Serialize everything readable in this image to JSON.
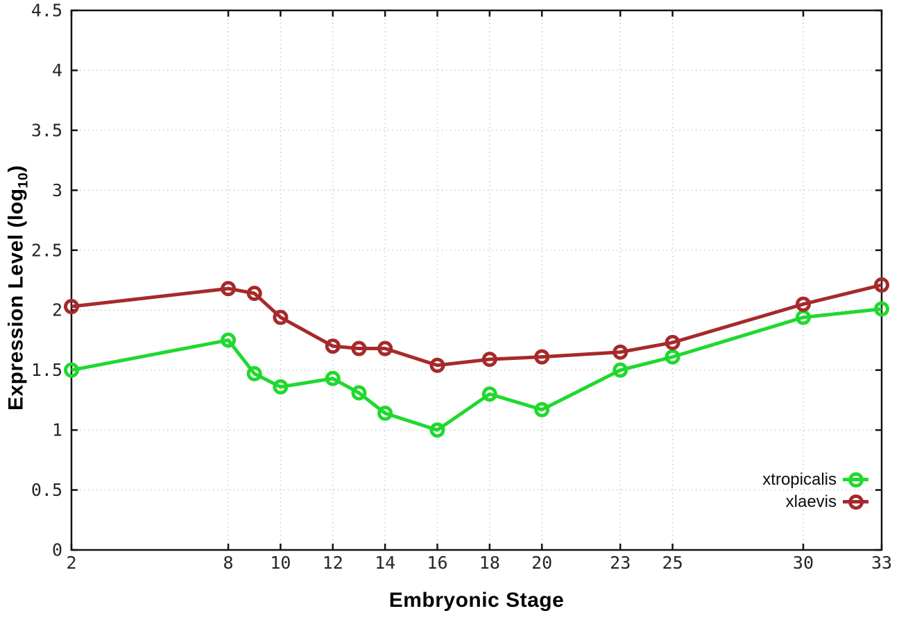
{
  "chart_data": {
    "type": "line",
    "title": "",
    "xlabel": "Embryonic Stage",
    "ylabel": "Expression Level (log10)",
    "ylabel_parts": {
      "main": "Expression Level (log",
      "sub": "10",
      "close": ")"
    },
    "x": [
      2,
      8,
      9,
      10,
      12,
      13,
      14,
      16,
      18,
      20,
      23,
      25,
      30,
      33
    ],
    "series": [
      {
        "name": "xtropicalis",
        "color": "#1fd92e",
        "values": [
          1.5,
          1.75,
          1.47,
          1.36,
          1.43,
          1.31,
          1.14,
          1.0,
          1.3,
          1.17,
          1.5,
          1.61,
          1.94,
          2.01
        ]
      },
      {
        "name": "xlaevis",
        "color": "#a62a2b",
        "values": [
          2.03,
          2.18,
          2.14,
          1.94,
          1.7,
          1.68,
          1.68,
          1.54,
          1.59,
          1.61,
          1.65,
          1.73,
          2.05,
          2.21
        ]
      }
    ],
    "xlim": [
      2,
      33
    ],
    "ylim": [
      0,
      4.5
    ],
    "x_ticks": [
      2,
      8,
      10,
      12,
      14,
      16,
      18,
      20,
      23,
      25,
      30,
      33
    ],
    "y_ticks": [
      0,
      0.5,
      1,
      1.5,
      2,
      2.5,
      3,
      3.5,
      4,
      4.5
    ],
    "grid": true,
    "grid_style": "dotted",
    "marker": "open-circle",
    "legend_position": "inside-bottom-right",
    "background_color": "#ffffff",
    "axis_color": "#121212",
    "grid_color": "#c6c6c6",
    "tick_label_color": "#262626"
  }
}
